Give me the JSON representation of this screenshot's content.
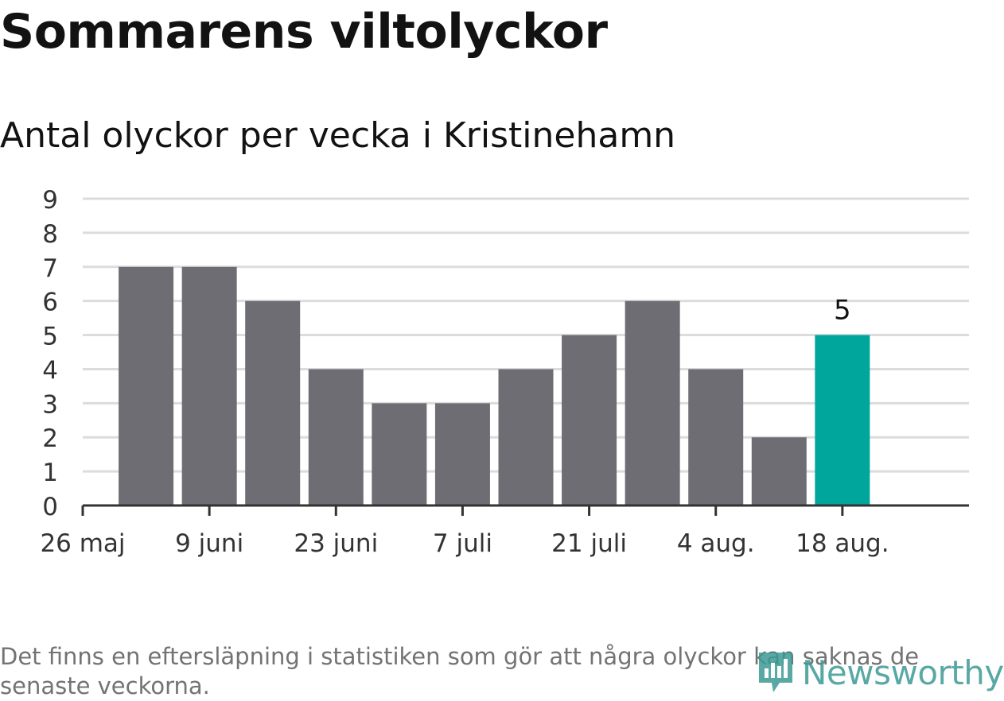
{
  "title": "Sommarens viltolyckor",
  "subtitle": "Antal olyckor per vecka i Kristinehamn",
  "footnote": "Det finns en eftersläpning i statistiken som gör att några olyckor kan saknas de senaste veckorna.",
  "logo": {
    "text": "Newsworthy",
    "icon": "newsworthy-logo-icon"
  },
  "colors": {
    "bar": "#6e6d74",
    "highlight": "#00a69c",
    "grid": "#dcdcdc",
    "axis": "#333333",
    "text": "#121212",
    "muted": "#737373"
  },
  "chart_data": {
    "type": "bar",
    "title": "Sommarens viltolyckor",
    "subtitle": "Antal olyckor per vecka i Kristinehamn",
    "x": [
      "2025-06-02",
      "2025-06-09",
      "2025-06-16",
      "2025-06-23",
      "2025-06-30",
      "2025-07-07",
      "2025-07-14",
      "2025-07-21",
      "2025-07-28",
      "2025-08-04",
      "2025-08-11",
      "2025-08-18"
    ],
    "values": [
      7,
      7,
      6,
      4,
      3,
      3,
      4,
      5,
      6,
      4,
      2,
      5
    ],
    "highlight_index": 11,
    "highlight_label": "5",
    "ylim": [
      0,
      9
    ],
    "yticks": [
      "0",
      "1",
      "2",
      "3",
      "4",
      "5",
      "6",
      "7",
      "8",
      "9"
    ],
    "xticks": [
      "26 maj",
      "9 juni",
      "23 juni",
      "7 juli",
      "21 juli",
      "4 aug.",
      "18 aug."
    ],
    "xtick_dates": [
      "2025-05-26",
      "2025-06-09",
      "2025-06-23",
      "2025-07-07",
      "2025-07-21",
      "2025-08-04",
      "2025-08-18"
    ],
    "xlim": [
      "2025-05-26",
      "2025-09-01"
    ],
    "xlabel": "",
    "ylabel": "",
    "grid": true,
    "legend": "none"
  }
}
